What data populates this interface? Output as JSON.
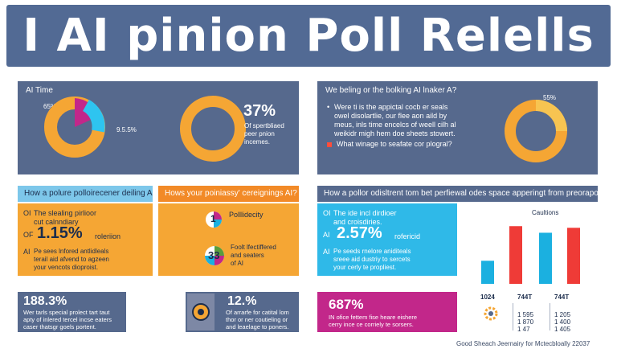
{
  "header": {
    "title": "I AI pinion Poll Relells"
  },
  "top_left": {
    "label": "AI Time",
    "label_65": "65%",
    "label_915": "9.5.5%",
    "big_value": "37%",
    "desc": "Of spertbliaed\npeer pnion\nincemes."
  },
  "top_right": {
    "question": "We beling or the bolking AI lnaker A?",
    "label_55": "55%",
    "bullet1": "Were ti is the appictal cocb er seals\nowel disolartlie, our flee aon aild by\nmeus, inls time encelcs of weell cilh al\nweikidr migh hem doe sheets stowert.",
    "bullet2": "What winage to seafate cor plogral?"
  },
  "q_left": "How a polure polloirecener deiling AI?",
  "q_mid": "Hows your poiniassy' cereignings AI?",
  "q_right": "How a pollor odisltrent tom bet perfiewal odes space apperingt from preoraport?",
  "mid_left": {
    "r1_tag": "OI",
    "r1_text": "The slealing pirlioor\ncut calnndiary",
    "r2_tag": "OF",
    "r2_big": "1.15%",
    "r2_small": "roleriion",
    "r3_tag": "AI",
    "r3_text": "Pe sees lnfored antlidleals\nterail aid afvend to agzeen\nyour vencots dioproist."
  },
  "mid_center": {
    "icon1_num": "1",
    "text1": "Polllidecity",
    "icon2_num": "33",
    "text2": "Foolt lfectiffered\nand seaters\nof AI"
  },
  "mid_right": {
    "r1_tag": "OI",
    "r1_text": "The ide incl dirdioer\nand croisdiries.",
    "r2_tag": "AI",
    "r2_big": "2.57%",
    "r2_small": "rofericid",
    "r3_tag": "AI",
    "r3_text": "Pe seeds rnelore aniditeals\nsreee aid dustriy to sercets\nyour cerly te propliest."
  },
  "chart_data": {
    "type": "bar",
    "title": "Caultions",
    "categories": [
      "",
      "",
      "",
      ""
    ],
    "values": [
      28,
      70,
      62,
      68
    ],
    "ylim": [
      0,
      80
    ],
    "colors": [
      "#1bb0e0",
      "#ef3b37",
      "#1bb0e0",
      "#ef3b37"
    ]
  },
  "bottom": {
    "b1_big": "188.3%",
    "b1_text": "Wer tarls special prolect tart taut\napty of inlered tercel incse eaters\ncaser thatsgr goels portent.",
    "b2_big": "12.%",
    "b2_text": "Of arrarfe for catital lom\nthor or ner coutieling or\nand leaelage to poners.",
    "b3_big": "687%",
    "b3_text": "IN ofice fettem fise heare eishere\ncerry ince ce corriely te sorsers."
  },
  "table": {
    "headers": [
      "1024",
      "744T",
      "744T"
    ],
    "col2": [
      "1 595",
      "1 870",
      "1 47"
    ],
    "col3": [
      "1 205",
      "1 400",
      "1 405"
    ]
  },
  "footer": "Good Sheach Jeernairy for Mctecbloally 22037",
  "colors": {
    "banner": "#526a94",
    "panel": "#56698d",
    "orange": "#f5a634",
    "blue": "#1bb0e0",
    "red": "#ef3b37",
    "magenta": "#c2278a"
  }
}
